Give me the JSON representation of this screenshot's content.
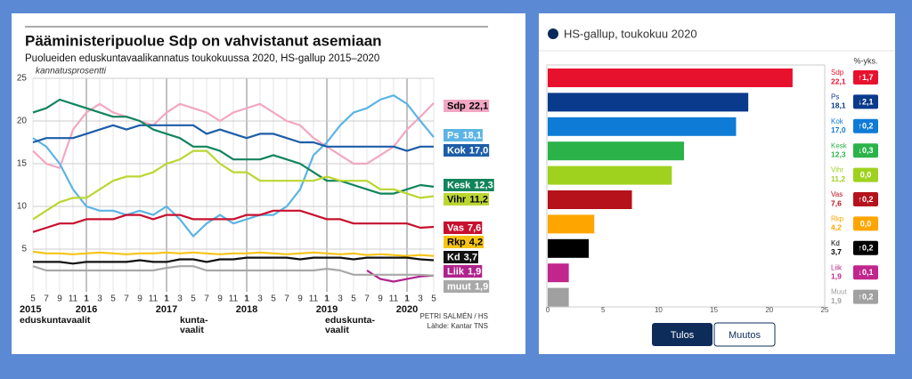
{
  "chart_data": [
    {
      "type": "line",
      "title": "Pääministeripuolue Sdp on vahvistanut asemiaan",
      "subtitle": "Puolueiden eduskuntavaalikannatus toukokuussa 2020, HS-gallup 2015–2020",
      "y_label": "kannatusprosentti",
      "source": [
        "PETRI SALMÉN / HS",
        "Lähde: Kantar TNS"
      ],
      "years": [
        "2015",
        "2016",
        "2017",
        "2018",
        "2019",
        "2020"
      ],
      "events": [
        [
          "eduskuntavaalit"
        ],
        [
          "kunta-",
          "vaalit"
        ],
        [
          "eduskunta-",
          "vaalit"
        ]
      ],
      "categories": [
        "5",
        "7",
        "9",
        "11",
        "1",
        "3",
        "5",
        "7",
        "9",
        "11",
        "1",
        "3",
        "5",
        "7",
        "9",
        "11",
        "1",
        "3",
        "5",
        "7",
        "9",
        "11",
        "1",
        "3",
        "5",
        "7",
        "9",
        "11",
        "1",
        "3",
        "5"
      ],
      "ylim": [
        0,
        25
      ],
      "yticks": [
        5,
        10,
        15,
        20,
        25
      ],
      "grid": true,
      "series": [
        {
          "name": "Sdp",
          "color": "#f2a7c3",
          "text_color": "#000",
          "values": [
            16.5,
            15,
            14.5,
            19,
            21,
            22,
            21,
            20.5,
            20,
            19.5,
            21,
            22,
            21.5,
            21,
            20,
            21,
            21.5,
            22,
            21,
            20,
            19.5,
            18,
            17,
            16,
            15,
            15,
            16,
            17,
            19,
            20.5,
            22.1
          ],
          "value_labels": [
            null,
            null,
            null,
            null,
            null,
            null,
            null,
            null,
            null,
            null,
            null,
            null,
            null,
            null,
            null,
            null,
            null,
            null,
            null,
            null,
            null,
            null,
            null,
            null,
            null,
            null,
            null,
            null,
            null,
            null,
            "22,1"
          ]
        },
        {
          "name": "Ps",
          "color": "#5bb4e5",
          "text_color": "#fff",
          "values": [
            18,
            17,
            15,
            12,
            10,
            9.5,
            9.5,
            9,
            9.5,
            9,
            10,
            8.5,
            6.5,
            8,
            9,
            8,
            8.5,
            9,
            9,
            10,
            12,
            16,
            17.5,
            19.5,
            21,
            21.5,
            22.5,
            23,
            22,
            20,
            18.1
          ],
          "value_labels": [
            null,
            null,
            null,
            null,
            null,
            null,
            null,
            null,
            null,
            null,
            null,
            null,
            null,
            null,
            null,
            null,
            null,
            null,
            null,
            null,
            null,
            null,
            null,
            null,
            null,
            null,
            null,
            null,
            null,
            null,
            "18,1"
          ]
        },
        {
          "name": "Kok",
          "color": "#1d5da8",
          "text_color": "#fff",
          "values": [
            17.5,
            18,
            18,
            18,
            18.5,
            19,
            19.5,
            19,
            19.5,
            19.5,
            19.5,
            19.5,
            19.5,
            18.5,
            19,
            18.5,
            18,
            18.5,
            18.5,
            18,
            17.5,
            17.5,
            17,
            17,
            17,
            17,
            17,
            17,
            16.5,
            17,
            17
          ],
          "value_labels": [
            null,
            null,
            null,
            null,
            null,
            null,
            null,
            null,
            null,
            null,
            null,
            null,
            null,
            null,
            null,
            null,
            null,
            null,
            null,
            null,
            null,
            null,
            null,
            null,
            null,
            null,
            null,
            null,
            null,
            null,
            "17,0"
          ]
        },
        {
          "name": "Kesk",
          "color": "#11845b",
          "text_color": "#fff",
          "values": [
            21,
            21.5,
            22.5,
            22,
            21.5,
            21,
            20.5,
            20.5,
            20,
            19,
            18.5,
            18,
            17,
            17,
            16.5,
            15.5,
            15.5,
            15.5,
            16,
            15.5,
            15,
            14,
            13,
            13,
            12.5,
            12,
            11.5,
            11.5,
            12,
            12.5,
            12.3
          ],
          "value_labels": [
            null,
            null,
            null,
            null,
            null,
            null,
            null,
            null,
            null,
            null,
            null,
            null,
            null,
            null,
            null,
            null,
            null,
            null,
            null,
            null,
            null,
            null,
            null,
            null,
            null,
            null,
            null,
            null,
            null,
            null,
            "12,3"
          ]
        },
        {
          "name": "Vihr",
          "color": "#bcd631",
          "text_color": "#000",
          "values": [
            8.5,
            9.5,
            10.5,
            11,
            11,
            12,
            13,
            13.5,
            13.5,
            14,
            15,
            15.5,
            16.5,
            16.5,
            15,
            14,
            14,
            13,
            13,
            13,
            13,
            13,
            13.5,
            13,
            13,
            13,
            12,
            12,
            11.5,
            11,
            11.2
          ],
          "value_labels": [
            null,
            null,
            null,
            null,
            null,
            null,
            null,
            null,
            null,
            null,
            null,
            null,
            null,
            null,
            null,
            null,
            null,
            null,
            null,
            null,
            null,
            null,
            null,
            null,
            null,
            null,
            null,
            null,
            null,
            null,
            "11,2"
          ]
        },
        {
          "name": "Vas",
          "color": "#c8102e",
          "text_color": "#fff",
          "values": [
            7,
            7.5,
            8,
            8,
            8.5,
            8.5,
            8.5,
            9,
            9,
            8.5,
            9,
            9,
            8.5,
            8.5,
            8.5,
            8.5,
            9,
            9,
            9.5,
            9.5,
            9.5,
            9,
            8.5,
            8.5,
            8,
            8,
            8,
            8,
            8,
            7.5,
            7.6
          ],
          "value_labels": [
            null,
            null,
            null,
            null,
            null,
            null,
            null,
            null,
            null,
            null,
            null,
            null,
            null,
            null,
            null,
            null,
            null,
            null,
            null,
            null,
            null,
            null,
            null,
            null,
            null,
            null,
            null,
            null,
            null,
            null,
            "7,6"
          ]
        },
        {
          "name": "Rkp",
          "color": "#f6c414",
          "text_color": "#000",
          "values": [
            4.7,
            4.5,
            4.5,
            4.4,
            4.5,
            4.6,
            4.5,
            4.4,
            4.5,
            4.5,
            4.6,
            4.5,
            4.6,
            4.5,
            4.4,
            4.5,
            4.5,
            4.6,
            4.5,
            4.4,
            4.5,
            4.6,
            4.5,
            4.4,
            4.5,
            4.3,
            4.4,
            4.3,
            4.2,
            4.3,
            4.2
          ],
          "value_labels": [
            null,
            null,
            null,
            null,
            null,
            null,
            null,
            null,
            null,
            null,
            null,
            null,
            null,
            null,
            null,
            null,
            null,
            null,
            null,
            null,
            null,
            null,
            null,
            null,
            null,
            null,
            null,
            null,
            null,
            null,
            "4,2"
          ]
        },
        {
          "name": "Kd",
          "color": "#111111",
          "text_color": "#fff",
          "values": [
            3.5,
            3.5,
            3.5,
            3.3,
            3.5,
            3.5,
            3.5,
            3.5,
            3.7,
            3.5,
            3.5,
            3.8,
            3.8,
            3.5,
            3.8,
            3.8,
            4,
            4,
            4,
            4,
            3.8,
            4,
            4,
            4,
            3.8,
            4,
            4,
            4,
            4,
            3.8,
            3.7
          ],
          "value_labels": [
            null,
            null,
            null,
            null,
            null,
            null,
            null,
            null,
            null,
            null,
            null,
            null,
            null,
            null,
            null,
            null,
            null,
            null,
            null,
            null,
            null,
            null,
            null,
            null,
            null,
            null,
            null,
            null,
            null,
            null,
            "3,7"
          ]
        },
        {
          "name": "Liik",
          "color": "#b0228c",
          "text_color": "#fff",
          "values": [
            null,
            null,
            null,
            null,
            null,
            null,
            null,
            null,
            null,
            null,
            null,
            null,
            null,
            null,
            null,
            null,
            null,
            null,
            null,
            null,
            null,
            null,
            null,
            null,
            null,
            2.5,
            1.5,
            1.2,
            1.5,
            1.8,
            1.9
          ],
          "value_labels": [
            null,
            null,
            null,
            null,
            null,
            null,
            null,
            null,
            null,
            null,
            null,
            null,
            null,
            null,
            null,
            null,
            null,
            null,
            null,
            null,
            null,
            null,
            null,
            null,
            null,
            null,
            null,
            null,
            null,
            null,
            "1,9"
          ]
        },
        {
          "name": "muut",
          "color": "#a8a8a8",
          "text_color": "#fff",
          "values": [
            3,
            2.5,
            2.5,
            2.5,
            2.5,
            2.5,
            2.5,
            2.5,
            2.5,
            2.5,
            2.8,
            3,
            3,
            2.5,
            2.5,
            2.5,
            2.5,
            2.5,
            2.5,
            2.5,
            2.5,
            2.5,
            2.7,
            2.5,
            2,
            2,
            2,
            2,
            2,
            2,
            1.9
          ],
          "value_labels": [
            null,
            null,
            null,
            null,
            null,
            null,
            null,
            null,
            null,
            null,
            null,
            null,
            null,
            null,
            null,
            null,
            null,
            null,
            null,
            null,
            null,
            null,
            null,
            null,
            null,
            null,
            null,
            null,
            null,
            null,
            "1,9"
          ]
        }
      ]
    },
    {
      "type": "bar",
      "orientation": "horizontal",
      "title": "HS-gallup, toukokuu 2020",
      "change_header": "%-yks.",
      "categories": [
        "Sdp",
        "Ps",
        "Kok",
        "Kesk",
        "Vihr",
        "Vas",
        "Rkp",
        "Kd",
        "Liik",
        "Muut"
      ],
      "values": [
        22.1,
        18.1,
        17.0,
        12.3,
        11.2,
        7.6,
        4.2,
        3.7,
        1.9,
        1.9
      ],
      "value_labels": [
        "22,1",
        "18,1",
        "17,0",
        "12,3",
        "11,2",
        "7,6",
        "4,2",
        "3,7",
        "1,9",
        "1,9"
      ],
      "changes": [
        1.7,
        -2.1,
        0.2,
        -0.3,
        0,
        0.2,
        0,
        0.2,
        -0.1,
        0.2
      ],
      "change_labels": [
        "↑1,7",
        "↓2,1",
        "↑0,2",
        "↓0,3",
        "0,0",
        "↑0,2",
        "0,0",
        "↑0,2",
        "↓0,1",
        "↑0,2"
      ],
      "colors": [
        "#e8112d",
        "#0a3a8c",
        "#0e7bd6",
        "#2bb34a",
        "#9fd21f",
        "#b5121b",
        "#ffa500",
        "#000000",
        "#c1268d",
        "#a0a0a0"
      ],
      "xlim": [
        0,
        25
      ],
      "xticks": [
        0,
        5,
        10,
        15,
        20,
        25
      ],
      "grid": false,
      "buttons": [
        "Tulos",
        "Muutos"
      ]
    }
  ]
}
